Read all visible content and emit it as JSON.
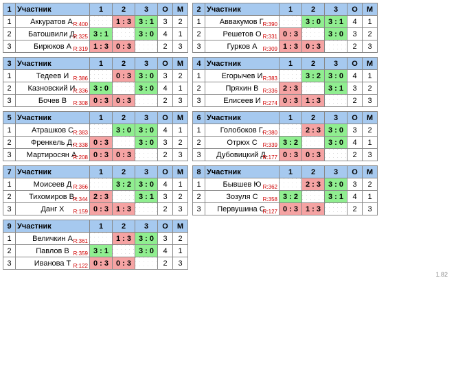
{
  "footer_version": "1.82",
  "headers": {
    "participant": "Участник",
    "round_labels": [
      "1",
      "2",
      "3"
    ],
    "points": "О",
    "place": "М"
  },
  "groups": [
    {
      "num": "1",
      "rows": [
        {
          "n": "1",
          "name": "Аккуратов А.",
          "rating": "R:400",
          "results": [
            "",
            "1 : 3",
            "3 : 1"
          ],
          "states": [
            "diag",
            "loss",
            "win"
          ],
          "o": "3",
          "m": "2"
        },
        {
          "n": "2",
          "name": "Батошвили Д.",
          "rating": "R:325",
          "results": [
            "3 : 1",
            "",
            "3 : 0"
          ],
          "states": [
            "win",
            "diag",
            "win"
          ],
          "o": "4",
          "m": "1"
        },
        {
          "n": "3",
          "name": "Бирюков А",
          "rating": "R:319",
          "results": [
            "1 : 3",
            "0 : 3",
            ""
          ],
          "states": [
            "loss",
            "loss",
            "diag"
          ],
          "o": "2",
          "m": "3"
        }
      ]
    },
    {
      "num": "2",
      "rows": [
        {
          "n": "1",
          "name": "Аввакумов Г.",
          "rating": "R:390",
          "results": [
            "",
            "3 : 0",
            "3 : 1"
          ],
          "states": [
            "diag",
            "win",
            "win"
          ],
          "o": "4",
          "m": "1"
        },
        {
          "n": "2",
          "name": "Решетов О",
          "rating": "R:331",
          "results": [
            "0 : 3",
            "",
            "3 : 0"
          ],
          "states": [
            "loss",
            "diag",
            "win"
          ],
          "o": "3",
          "m": "2"
        },
        {
          "n": "3",
          "name": "Гурков А",
          "rating": "R:309",
          "results": [
            "1 : 3",
            "0 : 3",
            ""
          ],
          "states": [
            "loss",
            "loss",
            "diag"
          ],
          "o": "2",
          "m": "3"
        }
      ]
    },
    {
      "num": "3",
      "rows": [
        {
          "n": "1",
          "name": "Тедеев И",
          "rating": "R:386",
          "results": [
            "",
            "0 : 3",
            "3 : 0"
          ],
          "states": [
            "diag",
            "loss",
            "win"
          ],
          "o": "3",
          "m": "2"
        },
        {
          "n": "2",
          "name": "Казновский И.",
          "rating": "R:336",
          "results": [
            "3 : 0",
            "",
            "3 : 0"
          ],
          "states": [
            "win",
            "diag",
            "win"
          ],
          "o": "4",
          "m": "1"
        },
        {
          "n": "3",
          "name": "Бочев В",
          "rating": "R:308",
          "results": [
            "0 : 3",
            "0 : 3",
            ""
          ],
          "states": [
            "loss",
            "loss",
            "diag"
          ],
          "o": "2",
          "m": "3"
        }
      ]
    },
    {
      "num": "4",
      "rows": [
        {
          "n": "1",
          "name": "Егорычев И",
          "rating": "R:383",
          "results": [
            "",
            "3 : 2",
            "3 : 0"
          ],
          "states": [
            "diag",
            "win",
            "win"
          ],
          "o": "4",
          "m": "1"
        },
        {
          "n": "2",
          "name": "Пряхин В",
          "rating": "R:336",
          "results": [
            "2 : 3",
            "",
            "3 : 1"
          ],
          "states": [
            "loss",
            "diag",
            "win"
          ],
          "o": "3",
          "m": "2"
        },
        {
          "n": "3",
          "name": "Елисеев И",
          "rating": "R:274",
          "results": [
            "0 : 3",
            "1 : 3",
            ""
          ],
          "states": [
            "loss",
            "loss",
            "diag"
          ],
          "o": "2",
          "m": "3"
        }
      ]
    },
    {
      "num": "5",
      "rows": [
        {
          "n": "1",
          "name": "Атрашков С",
          "rating": "R:383",
          "results": [
            "",
            "3 : 0",
            "3 : 0"
          ],
          "states": [
            "diag",
            "win",
            "win"
          ],
          "o": "4",
          "m": "1"
        },
        {
          "n": "2",
          "name": "Френкель Д.",
          "rating": "R:338",
          "results": [
            "0 : 3",
            "",
            "3 : 0"
          ],
          "states": [
            "loss",
            "diag",
            "win"
          ],
          "o": "3",
          "m": "2"
        },
        {
          "n": "3",
          "name": "Мартиросян А.",
          "rating": "R:208",
          "results": [
            "0 : 3",
            "0 : 3",
            ""
          ],
          "states": [
            "loss",
            "loss",
            "diag"
          ],
          "o": "2",
          "m": "3"
        }
      ]
    },
    {
      "num": "6",
      "rows": [
        {
          "n": "1",
          "name": "Голобоков Г.",
          "rating": "R:380",
          "results": [
            "",
            "2 : 3",
            "3 : 0"
          ],
          "states": [
            "diag",
            "loss",
            "win"
          ],
          "o": "3",
          "m": "2"
        },
        {
          "n": "2",
          "name": "Отрюх С",
          "rating": "R:339",
          "results": [
            "3 : 2",
            "",
            "3 : 0"
          ],
          "states": [
            "win",
            "diag",
            "win"
          ],
          "o": "4",
          "m": "1"
        },
        {
          "n": "3",
          "name": "Дубовицкий Д.",
          "rating": "R:177",
          "results": [
            "0 : 3",
            "0 : 3",
            ""
          ],
          "states": [
            "loss",
            "loss",
            "diag"
          ],
          "o": "2",
          "m": "3"
        }
      ]
    },
    {
      "num": "7",
      "rows": [
        {
          "n": "1",
          "name": "Моисеев Д",
          "rating": "R:366",
          "results": [
            "",
            "3 : 2",
            "3 : 0"
          ],
          "states": [
            "diag",
            "win",
            "win"
          ],
          "o": "4",
          "m": "1"
        },
        {
          "n": "2",
          "name": "Тихомиров В.",
          "rating": "R:344",
          "results": [
            "2 : 3",
            "",
            "3 : 1"
          ],
          "states": [
            "loss",
            "diag",
            "win"
          ],
          "o": "3",
          "m": "2"
        },
        {
          "n": "3",
          "name": "Данг Х",
          "rating": "R:159",
          "results": [
            "0 : 3",
            "1 : 3",
            ""
          ],
          "states": [
            "loss",
            "loss",
            "diag"
          ],
          "o": "2",
          "m": "3"
        }
      ]
    },
    {
      "num": "8",
      "rows": [
        {
          "n": "1",
          "name": "Бывшев Ю",
          "rating": "R:362",
          "results": [
            "",
            "2 : 3",
            "3 : 0"
          ],
          "states": [
            "diag",
            "loss",
            "win"
          ],
          "o": "3",
          "m": "2"
        },
        {
          "n": "2",
          "name": "Зозуля С",
          "rating": "R:358",
          "results": [
            "3 : 2",
            "",
            "3 : 1"
          ],
          "states": [
            "win",
            "diag",
            "win"
          ],
          "o": "4",
          "m": "1"
        },
        {
          "n": "3",
          "name": "Первушина С.",
          "rating": "R:127",
          "results": [
            "0 : 3",
            "1 : 3",
            ""
          ],
          "states": [
            "loss",
            "loss",
            "diag"
          ],
          "o": "2",
          "m": "3"
        }
      ]
    },
    {
      "num": "9",
      "rows": [
        {
          "n": "1",
          "name": "Величкин А",
          "rating": "R:361",
          "results": [
            "",
            "1 : 3",
            "3 : 0"
          ],
          "states": [
            "diag",
            "loss",
            "win"
          ],
          "o": "3",
          "m": "2"
        },
        {
          "n": "2",
          "name": "Павлов В",
          "rating": "R:359",
          "results": [
            "3 : 1",
            "",
            "3 : 0"
          ],
          "states": [
            "win",
            "diag",
            "win"
          ],
          "o": "4",
          "m": "1"
        },
        {
          "n": "3",
          "name": "Иванова Т",
          "rating": "R:122",
          "results": [
            "0 : 3",
            "0 : 3",
            ""
          ],
          "states": [
            "loss",
            "loss",
            "diag"
          ],
          "o": "2",
          "m": "3"
        }
      ]
    }
  ]
}
